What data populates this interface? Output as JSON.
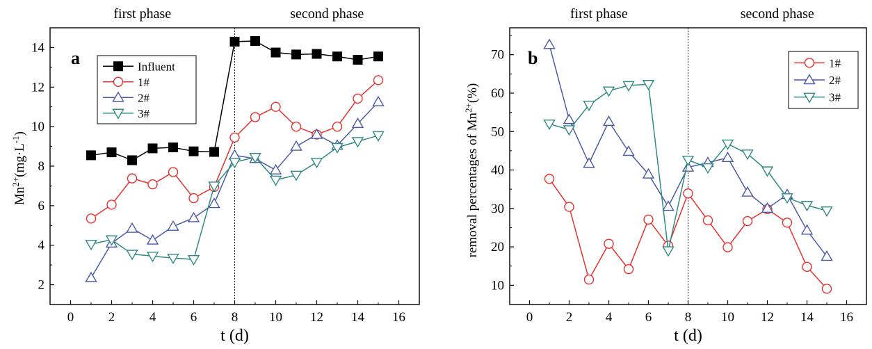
{
  "chart_data": [
    {
      "type": "line",
      "panel_label": "a",
      "phase_labels": [
        "first phase",
        "second phase"
      ],
      "phase_boundary_x": 8,
      "xlabel": "t (d)",
      "ylabel": "Mn2+(mg·L-1)",
      "ylabel_parts": {
        "base": "Mn",
        "sup1": "2+",
        "mid": "(mg·L",
        "sup2": "-1",
        "end": ")"
      },
      "xlim": [
        -1,
        17
      ],
      "ylim": [
        1,
        15
      ],
      "xticks": [
        0,
        2,
        4,
        6,
        8,
        10,
        12,
        14,
        16
      ],
      "yticks": [
        2,
        4,
        6,
        8,
        10,
        12,
        14
      ],
      "x": [
        1,
        2,
        3,
        4,
        5,
        6,
        7,
        8,
        9,
        10,
        11,
        12,
        13,
        14,
        15
      ],
      "legend_position": "top-left",
      "series": [
        {
          "name": "Influent",
          "color": "#000000",
          "marker": "square-filled",
          "values": [
            8.55,
            8.7,
            8.3,
            8.9,
            8.95,
            8.75,
            8.72,
            14.3,
            14.33,
            13.75,
            13.65,
            13.68,
            13.55,
            13.38,
            13.55
          ]
        },
        {
          "name": "1#",
          "color": "#e8312d",
          "marker": "circle-open",
          "values": [
            5.35,
            6.05,
            7.38,
            7.08,
            7.7,
            6.38,
            6.95,
            9.45,
            10.48,
            11.0,
            10.0,
            9.6,
            10.0,
            11.42,
            12.35
          ]
        },
        {
          "name": "2#",
          "color": "#4a5aa8",
          "marker": "triangle-up-open",
          "values": [
            2.35,
            4.1,
            4.85,
            4.25,
            4.95,
            5.38,
            6.1,
            8.55,
            8.38,
            7.8,
            9.0,
            9.6,
            9.05,
            10.15,
            11.25
          ]
        },
        {
          "name": "3#",
          "color": "#2f8a84",
          "marker": "triangle-down-open",
          "values": [
            4.05,
            4.28,
            3.55,
            3.45,
            3.35,
            3.28,
            7.0,
            8.2,
            8.45,
            7.3,
            7.55,
            8.2,
            8.95,
            9.25,
            9.55
          ]
        }
      ]
    },
    {
      "type": "line",
      "panel_label": "b",
      "phase_labels": [
        "first phase",
        "second phase"
      ],
      "phase_boundary_x": 8,
      "xlabel": "t (d)",
      "ylabel": "removal percentages of Mn2+(%)",
      "ylabel_parts": {
        "base": "removal percentages of Mn",
        "sup1": "2+",
        "end": "(%)"
      },
      "xlim": [
        -1,
        17
      ],
      "ylim": [
        5,
        77
      ],
      "xticks": [
        0,
        2,
        4,
        6,
        8,
        10,
        12,
        14,
        16
      ],
      "yticks": [
        10,
        20,
        30,
        40,
        50,
        60,
        70
      ],
      "x": [
        1,
        2,
        3,
        4,
        5,
        6,
        7,
        8,
        9,
        10,
        11,
        12,
        13,
        14,
        15
      ],
      "legend_position": "top-right",
      "series": [
        {
          "name": "1#",
          "color": "#e8312d",
          "marker": "circle-open",
          "values": [
            37.7,
            30.4,
            11.5,
            20.8,
            14.2,
            27.1,
            20.3,
            33.9,
            26.9,
            19.9,
            26.7,
            29.8,
            26.3,
            14.8,
            9.1
          ]
        },
        {
          "name": "2#",
          "color": "#4a5aa8",
          "marker": "triangle-up-open",
          "values": [
            72.6,
            53.1,
            41.7,
            52.6,
            44.8,
            38.9,
            30.5,
            40.7,
            41.9,
            43.2,
            34.2,
            30.0,
            33.6,
            24.3,
            17.5
          ]
        },
        {
          "name": "3#",
          "color": "#2f8a84",
          "marker": "triangle-down-open",
          "values": [
            52.0,
            50.5,
            56.9,
            60.6,
            62.0,
            62.3,
            19.0,
            42.6,
            40.6,
            46.8,
            44.2,
            39.8,
            32.8,
            30.8,
            29.4
          ]
        }
      ]
    }
  ]
}
